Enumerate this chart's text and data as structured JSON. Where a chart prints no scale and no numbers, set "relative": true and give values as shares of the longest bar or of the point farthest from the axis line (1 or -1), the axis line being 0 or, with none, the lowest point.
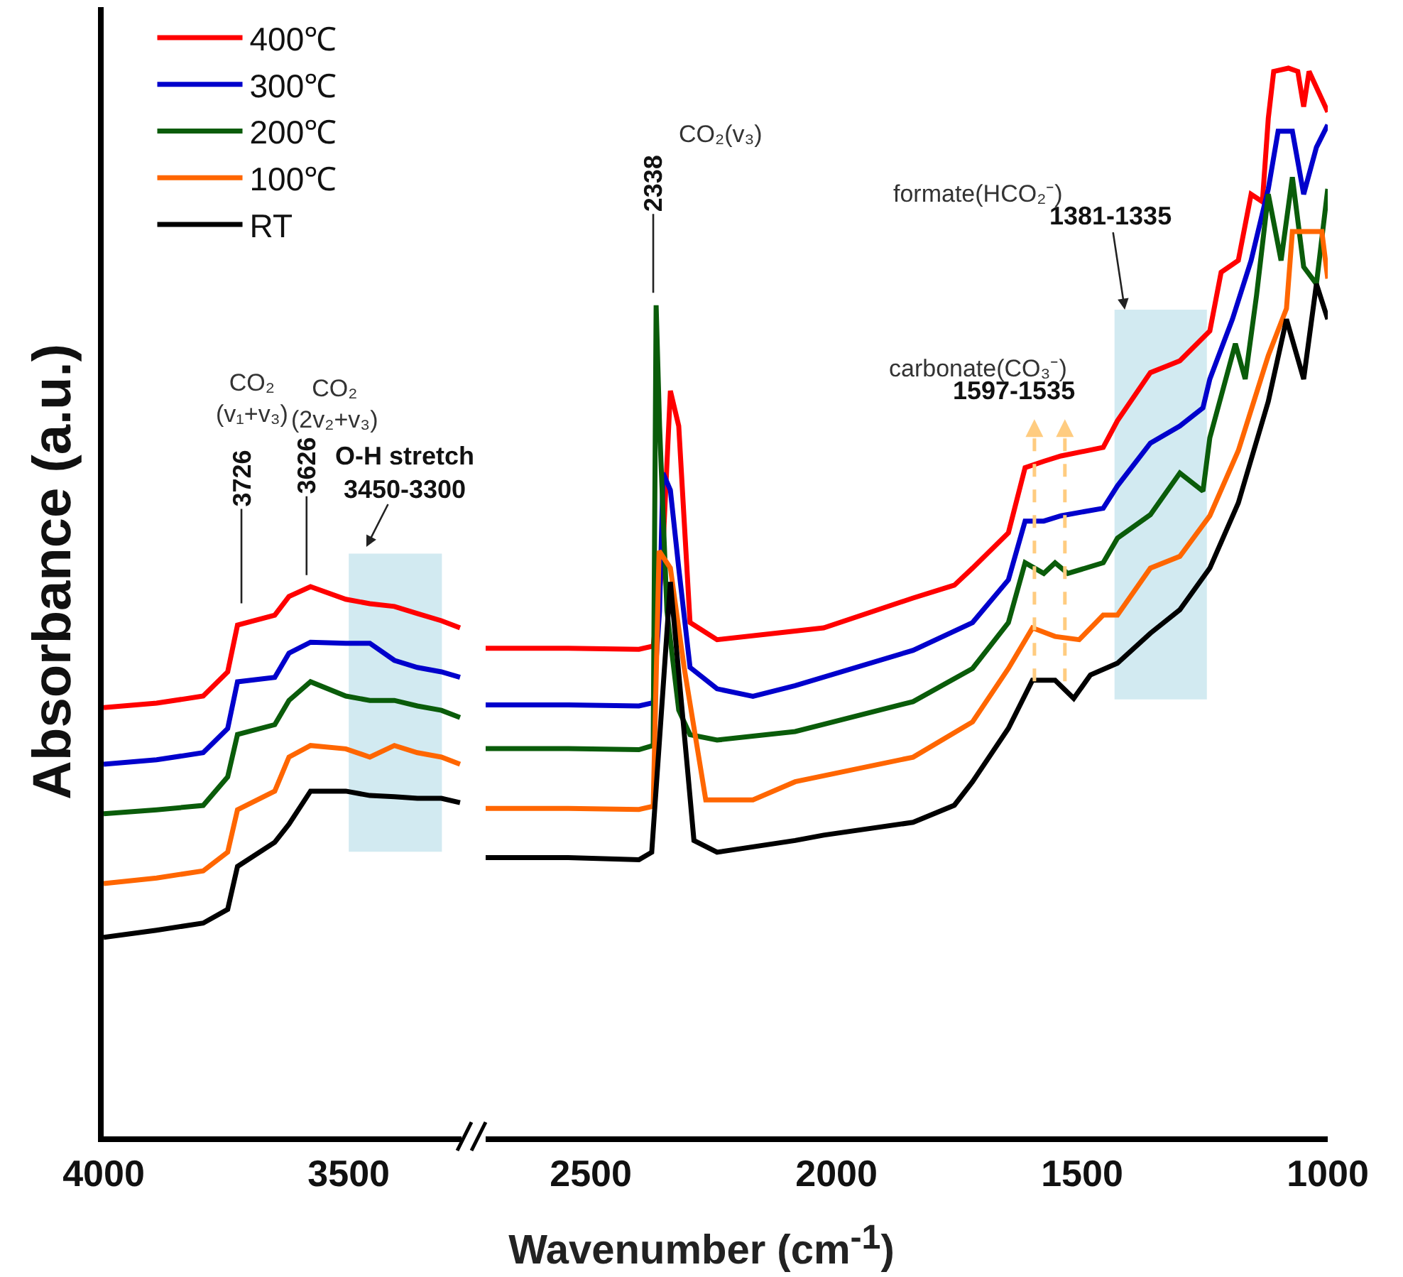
{
  "chart_data": [
    {
      "type": "line",
      "ylabel": "Absorbance (a.u.)",
      "relative": true,
      "tick_labels": "x",
      "legend": "top left",
      "marker": "none",
      "line_style": "solid",
      "xlim": [
        4000,
        3270
      ],
      "xticks": [
        4000,
        3500
      ],
      "series": [
        {
          "name": "400℃",
          "color": "#ff0000",
          "x": [
            4000,
            3892,
            3797,
            3747,
            3727,
            3651,
            3622,
            3578,
            3506,
            3457,
            3407,
            3360,
            3311,
            3273
          ],
          "values": [
            0.78,
            0.788,
            0.801,
            0.845,
            0.93,
            0.948,
            0.982,
            1.0,
            0.977,
            0.969,
            0.964,
            0.951,
            0.938,
            0.925
          ]
        },
        {
          "name": "300℃",
          "color": "#0000cc",
          "x": [
            4000,
            3892,
            3797,
            3747,
            3727,
            3651,
            3622,
            3578,
            3506,
            3457,
            3407,
            3360,
            3311,
            3273
          ],
          "values": [
            0.677,
            0.685,
            0.698,
            0.742,
            0.827,
            0.835,
            0.879,
            0.899,
            0.897,
            0.897,
            0.866,
            0.853,
            0.845,
            0.835
          ]
        },
        {
          "name": "200℃",
          "color": "#0a5c0a",
          "x": [
            4000,
            3892,
            3797,
            3747,
            3727,
            3651,
            3622,
            3578,
            3506,
            3457,
            3407,
            3360,
            3311,
            3273
          ],
          "values": [
            0.587,
            0.594,
            0.602,
            0.654,
            0.731,
            0.749,
            0.793,
            0.827,
            0.801,
            0.793,
            0.793,
            0.783,
            0.775,
            0.762
          ]
        },
        {
          "name": "100℃",
          "color": "#ff6600",
          "x": [
            4000,
            3892,
            3797,
            3747,
            3727,
            3651,
            3622,
            3578,
            3506,
            3457,
            3407,
            3360,
            3311,
            3273
          ],
          "values": [
            0.46,
            0.47,
            0.483,
            0.517,
            0.594,
            0.628,
            0.69,
            0.711,
            0.705,
            0.69,
            0.711,
            0.698,
            0.69,
            0.677
          ]
        },
        {
          "name": "RT",
          "color": "#000000",
          "x": [
            4000,
            3892,
            3797,
            3747,
            3727,
            3651,
            3622,
            3578,
            3506,
            3457,
            3407,
            3360,
            3311,
            3273
          ],
          "values": [
            0.362,
            0.375,
            0.388,
            0.413,
            0.491,
            0.535,
            0.568,
            0.628,
            0.628,
            0.62,
            0.618,
            0.615,
            0.615,
            0.607
          ]
        }
      ],
      "bands": [
        {
          "axis": "x",
          "from": 3500,
          "to": 3310,
          "color": "#add8e6"
        }
      ],
      "annotations": [
        "CO₂\n(v₁+v₃)",
        "CO₂\n(2v₂+v₃)",
        "3726",
        "3626",
        "O-H stretch\n3450-3300"
      ]
    },
    {
      "type": "line",
      "xlabel": "Wavenumber (cm$^{-1}$)",
      "relative": true,
      "tick_labels": "x",
      "marker": "none",
      "line_style": "solid",
      "xlim": [
        2714,
        1000
      ],
      "xticks": [
        2500,
        2000,
        1500,
        1000
      ],
      "series": [
        {
          "color": "#ff0000",
          "x": [
            2714,
            2546,
            2402,
            2373,
            2355,
            2338,
            2321,
            2298,
            2243,
            2084,
            2026,
            1844,
            1760,
            1723,
            1650,
            1616,
            1578,
            1543,
            1457,
            1428,
            1361,
            1301,
            1240,
            1217,
            1182,
            1156,
            1133,
            1121,
            1110,
            1080,
            1061,
            1049,
            1038,
            1000
          ],
          "values": [
            0.457,
            0.457,
            0.456,
            0.459,
            0.532,
            0.698,
            0.665,
            0.481,
            0.465,
            0.473,
            0.476,
            0.504,
            0.516,
            0.532,
            0.565,
            0.626,
            0.632,
            0.637,
            0.645,
            0.67,
            0.715,
            0.726,
            0.754,
            0.809,
            0.82,
            0.882,
            0.875,
            0.953,
            0.997,
            1.0,
            0.997,
            0.964,
            0.997,
            0.959
          ]
        },
        {
          "color": "#0000cc",
          "x": [
            2714,
            2546,
            2402,
            2373,
            2360,
            2353,
            2338,
            2321,
            2298,
            2243,
            2170,
            2084,
            1844,
            1723,
            1650,
            1616,
            1578,
            1543,
            1457,
            1428,
            1361,
            1301,
            1254,
            1240,
            1194,
            1156,
            1121,
            1101,
            1072,
            1049,
            1023,
            1000
          ],
          "values": [
            0.404,
            0.404,
            0.403,
            0.406,
            0.492,
            0.621,
            0.605,
            0.532,
            0.439,
            0.419,
            0.412,
            0.422,
            0.455,
            0.481,
            0.521,
            0.576,
            0.576,
            0.581,
            0.588,
            0.609,
            0.649,
            0.665,
            0.682,
            0.709,
            0.765,
            0.82,
            0.887,
            0.941,
            0.941,
            0.882,
            0.926,
            0.947
          ]
        },
        {
          "color": "#0a5c0a",
          "x": [
            2714,
            2546,
            2402,
            2373,
            2367,
            2360,
            2345,
            2321,
            2298,
            2243,
            2084,
            1844,
            1723,
            1650,
            1616,
            1578,
            1555,
            1529,
            1457,
            1428,
            1361,
            1301,
            1254,
            1240,
            1188,
            1168,
            1145,
            1121,
            1095,
            1072,
            1049,
            1023,
            1000
          ],
          "values": [
            0.363,
            0.363,
            0.362,
            0.366,
            0.778,
            0.665,
            0.492,
            0.399,
            0.376,
            0.371,
            0.379,
            0.407,
            0.438,
            0.481,
            0.537,
            0.527,
            0.537,
            0.527,
            0.537,
            0.56,
            0.582,
            0.621,
            0.604,
            0.654,
            0.742,
            0.709,
            0.787,
            0.882,
            0.82,
            0.898,
            0.814,
            0.798,
            0.887
          ]
        },
        {
          "color": "#ff6600",
          "x": [
            2714,
            2546,
            2402,
            2373,
            2361,
            2338,
            2310,
            2266,
            2170,
            2084,
            1844,
            1723,
            1650,
            1601,
            1555,
            1506,
            1457,
            1428,
            1361,
            1301,
            1240,
            1182,
            1121,
            1084,
            1072,
            1012,
            1000
          ],
          "values": [
            0.307,
            0.307,
            0.306,
            0.309,
            0.548,
            0.532,
            0.439,
            0.315,
            0.315,
            0.332,
            0.355,
            0.388,
            0.438,
            0.476,
            0.468,
            0.465,
            0.488,
            0.488,
            0.532,
            0.543,
            0.581,
            0.642,
            0.731,
            0.775,
            0.847,
            0.847,
            0.803
          ]
        },
        {
          "color": "#000000",
          "x": [
            2714,
            2546,
            2402,
            2376,
            2360,
            2338,
            2303,
            2290,
            2243,
            2084,
            2026,
            1844,
            1760,
            1723,
            1650,
            1601,
            1555,
            1517,
            1483,
            1428,
            1361,
            1301,
            1240,
            1182,
            1121,
            1084,
            1049,
            1023,
            1000
          ],
          "values": [
            0.261,
            0.261,
            0.259,
            0.266,
            0.372,
            0.519,
            0.343,
            0.277,
            0.266,
            0.277,
            0.282,
            0.294,
            0.31,
            0.332,
            0.382,
            0.427,
            0.427,
            0.41,
            0.432,
            0.443,
            0.471,
            0.493,
            0.532,
            0.593,
            0.688,
            0.765,
            0.709,
            0.798,
            0.765
          ]
        }
      ],
      "bands": [
        {
          "axis": "x",
          "from": 1434,
          "to": 1246,
          "color": "#add8e6"
        }
      ],
      "ref_lines": [
        {
          "axis": "x",
          "value": 1597,
          "color": "#ffcc80",
          "line_style": "dashed"
        },
        {
          "axis": "x",
          "value": 1535,
          "color": "#ffcc80",
          "line_style": "dashed"
        }
      ],
      "annotations": [
        "CO₂(v₃)",
        "2338",
        "carbonate(CO₃⁻)",
        "1597-1535",
        "formate(HCO₂⁻)",
        "1381-1335"
      ]
    }
  ]
}
